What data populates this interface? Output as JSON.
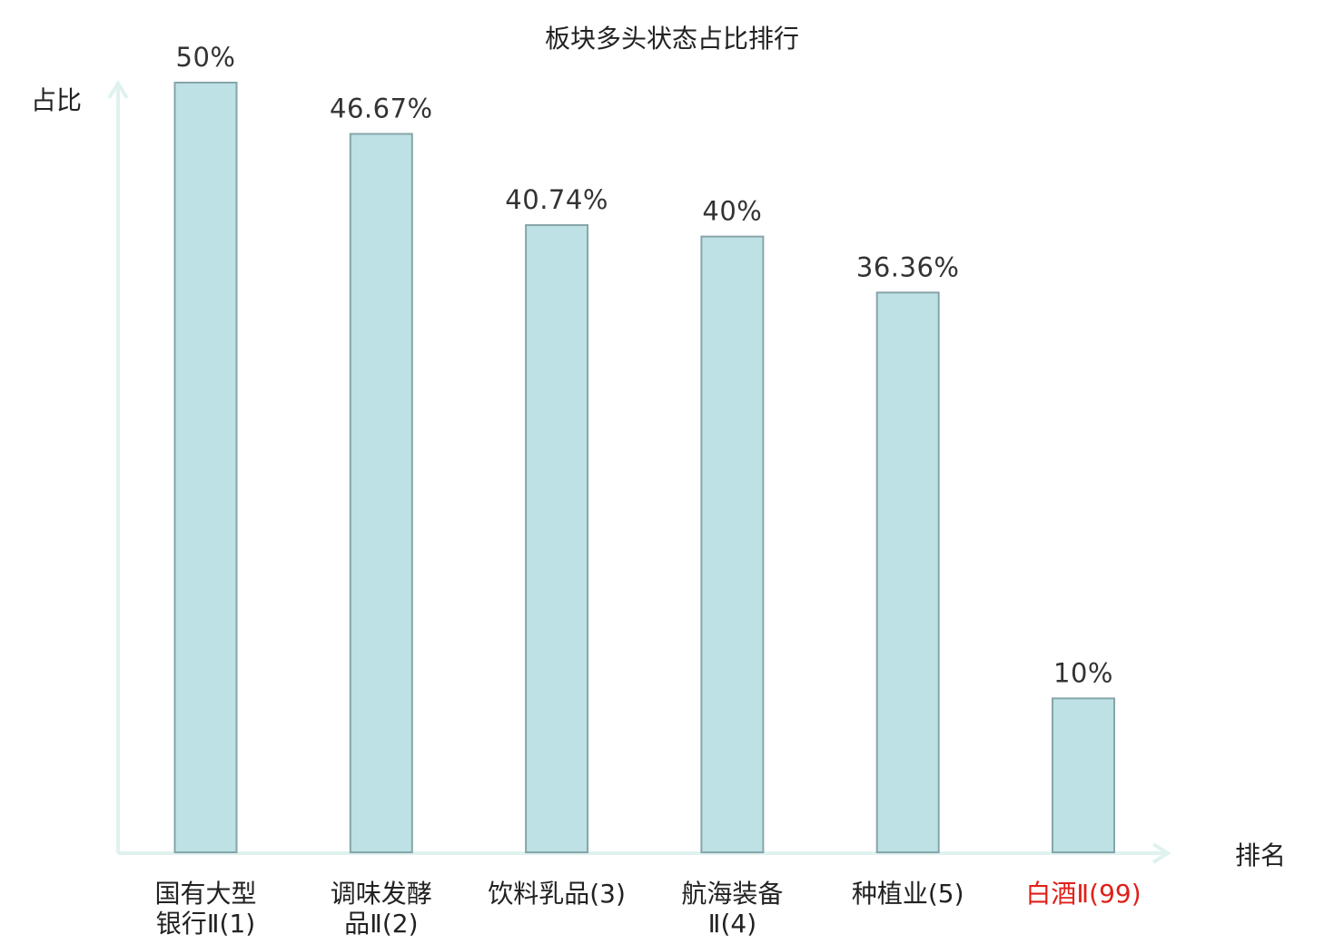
{
  "chart_data": {
    "type": "bar",
    "title": "板块多头状态占比排行",
    "ylabel": "占比",
    "xlabel": "排名",
    "categories": [
      [
        "国有大型",
        "银行Ⅱ(1)"
      ],
      [
        "调味发酵",
        "品Ⅱ(2)"
      ],
      [
        "饮料乳品(3)"
      ],
      [
        "航海装备",
        "Ⅱ(4)"
      ],
      [
        "种植业(5)"
      ],
      [
        "白酒Ⅱ(99)"
      ]
    ],
    "values": [
      50,
      46.67,
      40.74,
      40,
      36.36,
      10
    ],
    "value_labels": [
      "50%",
      "46.67%",
      "40.74%",
      "40%",
      "36.36%",
      "10%"
    ],
    "highlight_index": 5,
    "ylim": [
      0,
      50
    ],
    "grid": false,
    "colors": {
      "bar_fill": "#bde1e4",
      "bar_stroke": "#86a5a9",
      "axis": "#dff2f0",
      "highlight_label": "#e0201a"
    }
  }
}
